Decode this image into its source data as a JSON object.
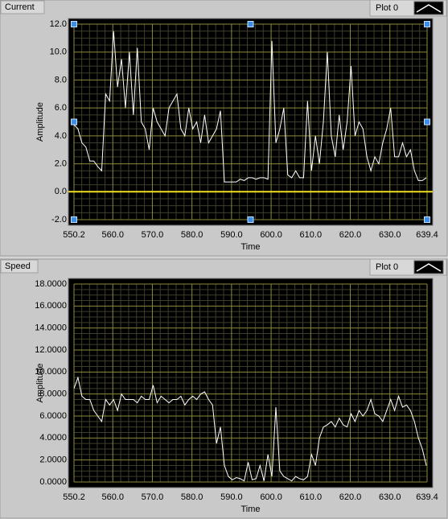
{
  "chart_data": [
    {
      "type": "line",
      "title": "Current",
      "xlabel": "Time",
      "ylabel": "Amplitude",
      "x": [
        550.2,
        551.2,
        552.2,
        553.2,
        554.2,
        555.2,
        556.2,
        557.2,
        558.2,
        559.2,
        560.2,
        561.2,
        562.2,
        563.2,
        564.2,
        565.2,
        566.2,
        567.2,
        568.2,
        569.2,
        570.2,
        571.2,
        572.2,
        573.2,
        574.2,
        575.2,
        576.2,
        577.2,
        578.2,
        579.2,
        580.2,
        581.2,
        582.2,
        583.2,
        584.2,
        585.2,
        586.2,
        587.2,
        588.2,
        589.2,
        590.2,
        591.2,
        592.2,
        593.2,
        594.2,
        595.2,
        596.2,
        597.2,
        598.2,
        599.2,
        600.2,
        601.2,
        602.2,
        603.2,
        604.2,
        605.2,
        606.2,
        607.2,
        608.2,
        609.2,
        610.2,
        611.2,
        612.2,
        613.2,
        614.2,
        615.2,
        616.2,
        617.2,
        618.2,
        619.2,
        620.2,
        621.2,
        622.2,
        623.2,
        624.2,
        625.2,
        626.2,
        627.2,
        628.2,
        629.2,
        630.2,
        631.2,
        632.2,
        633.2,
        634.2,
        635.2,
        636.2,
        637.2,
        638.2,
        639.2
      ],
      "series": [
        {
          "name": "Plot 0",
          "color": "#ffffff",
          "values": [
            4.8,
            4.5,
            3.5,
            3.2,
            2.2,
            2.2,
            1.8,
            1.5,
            7,
            6.5,
            11.5,
            7.5,
            9.5,
            6,
            10,
            5.5,
            10.3,
            5,
            4.5,
            3,
            6,
            5,
            4.5,
            4,
            6,
            6.5,
            7,
            4.5,
            4,
            6,
            4.5,
            5,
            3.5,
            5.5,
            3.5,
            4,
            4.5,
            5.8,
            0.7,
            0.7,
            0.7,
            0.7,
            0.9,
            0.8,
            1,
            1,
            0.9,
            1,
            1,
            0.9,
            10.8,
            3.5,
            4.5,
            6,
            1.2,
            1,
            1.5,
            1,
            1,
            6.5,
            1.5,
            4,
            2,
            5,
            10,
            4,
            2.5,
            5.5,
            3,
            5,
            9,
            4,
            5,
            4.5,
            2.5,
            1.5,
            2.5,
            2,
            3.5,
            4.5,
            6,
            2.5,
            2.5,
            3.5,
            2.5,
            3,
            1.5,
            0.8,
            0.8,
            1
          ]
        }
      ],
      "xlim": [
        550.2,
        639.4
      ],
      "ylim": [
        -2,
        12
      ],
      "xticks": [
        550.2,
        {
          "value": 560,
          "label": "560.0"
        },
        {
          "value": 570,
          "label": "570.0"
        },
        {
          "value": 580,
          "label": "580.0"
        },
        {
          "value": 590,
          "label": "590.0"
        },
        {
          "value": 600,
          "label": "600.0"
        },
        {
          "value": 610,
          "label": "610.0"
        },
        {
          "value": 620,
          "label": "620.0"
        },
        {
          "value": 630,
          "label": "630.0"
        },
        639.4
      ],
      "yticks": [
        {
          "value": -2,
          "label": "-2.0"
        },
        {
          "value": 0,
          "label": "0.0"
        },
        {
          "value": 2,
          "label": "2.0"
        },
        {
          "value": 4,
          "label": "4.0"
        },
        {
          "value": 6,
          "label": "6.0"
        },
        {
          "value": 8,
          "label": "8.0"
        },
        {
          "value": 10,
          "label": "10.0"
        },
        {
          "value": 12,
          "label": "12.0"
        }
      ],
      "grid": true
    },
    {
      "type": "line",
      "title": "Speed",
      "xlabel": "Time",
      "ylabel": "Amplitude",
      "x": [
        550.2,
        551.2,
        552.2,
        553.2,
        554.2,
        555.2,
        556.2,
        557.2,
        558.2,
        559.2,
        560.2,
        561.2,
        562.2,
        563.2,
        564.2,
        565.2,
        566.2,
        567.2,
        568.2,
        569.2,
        570.2,
        571.2,
        572.2,
        573.2,
        574.2,
        575.2,
        576.2,
        577.2,
        578.2,
        579.2,
        580.2,
        581.2,
        582.2,
        583.2,
        584.2,
        585.2,
        586.2,
        587.2,
        588.2,
        589.2,
        590.2,
        591.2,
        592.2,
        593.2,
        594.2,
        595.2,
        596.2,
        597.2,
        598.2,
        599.2,
        600.2,
        601.2,
        602.2,
        603.2,
        604.2,
        605.2,
        606.2,
        607.2,
        608.2,
        609.2,
        610.2,
        611.2,
        612.2,
        613.2,
        614.2,
        615.2,
        616.2,
        617.2,
        618.2,
        619.2,
        620.2,
        621.2,
        622.2,
        623.2,
        624.2,
        625.2,
        626.2,
        627.2,
        628.2,
        629.2,
        630.2,
        631.2,
        632.2,
        633.2,
        634.2,
        635.2,
        636.2,
        637.2,
        638.2,
        639.2
      ],
      "series": [
        {
          "name": "Plot 0",
          "color": "#ffffff",
          "values": [
            8.5,
            9.5,
            7.8,
            7.5,
            7.5,
            6.5,
            6,
            5.5,
            7.5,
            7,
            7.5,
            6.5,
            8,
            7.5,
            7.5,
            7.5,
            7.2,
            7.8,
            7.5,
            7.5,
            8.8,
            7.2,
            7.8,
            7.5,
            7.2,
            7.5,
            7.5,
            7.8,
            7,
            7.5,
            7.8,
            7.5,
            8,
            8.2,
            7.5,
            7,
            3.5,
            5,
            1.5,
            0.5,
            0.2,
            0.4,
            0.3,
            0.1,
            1.8,
            0.2,
            0.3,
            1.5,
            0.1,
            2.5,
            0.5,
            6.8,
            1,
            0.5,
            0.3,
            0.1,
            0.5,
            0.3,
            0.2,
            0.5,
            2.5,
            1.5,
            4,
            5,
            5.2,
            5.5,
            5,
            5.8,
            5.2,
            5,
            6.2,
            5.5,
            6.5,
            6,
            6.5,
            7.5,
            6.2,
            6,
            5.5,
            6.5,
            7.5,
            6.5,
            7.8,
            6.8,
            7,
            6.5,
            5.5,
            4,
            3,
            1.5
          ]
        }
      ],
      "xlim": [
        550.2,
        639.4
      ],
      "ylim": [
        0,
        18
      ],
      "xticks": [
        550.2,
        {
          "value": 560,
          "label": "560.0"
        },
        {
          "value": 570,
          "label": "570.0"
        },
        {
          "value": 580,
          "label": "580.0"
        },
        {
          "value": 590,
          "label": "590.0"
        },
        {
          "value": 600,
          "label": "600.0"
        },
        {
          "value": 610,
          "label": "610.0"
        },
        {
          "value": 620,
          "label": "620.0"
        },
        {
          "value": 630,
          "label": "630.0"
        },
        639.4
      ],
      "yticks": [
        {
          "value": 0,
          "label": "0.0000"
        },
        {
          "value": 2,
          "label": "2.0000"
        },
        {
          "value": 4,
          "label": "4.0000"
        },
        {
          "value": 6,
          "label": "6.0000"
        },
        {
          "value": 8,
          "label": "8.0000"
        },
        {
          "value": 10,
          "label": "10.0000"
        },
        {
          "value": 12,
          "label": "12.0000"
        },
        {
          "value": 14,
          "label": "14.0000"
        },
        {
          "value": 16,
          "label": "16.0000"
        },
        {
          "value": 18,
          "label": "18.0000"
        }
      ],
      "grid": true
    }
  ]
}
